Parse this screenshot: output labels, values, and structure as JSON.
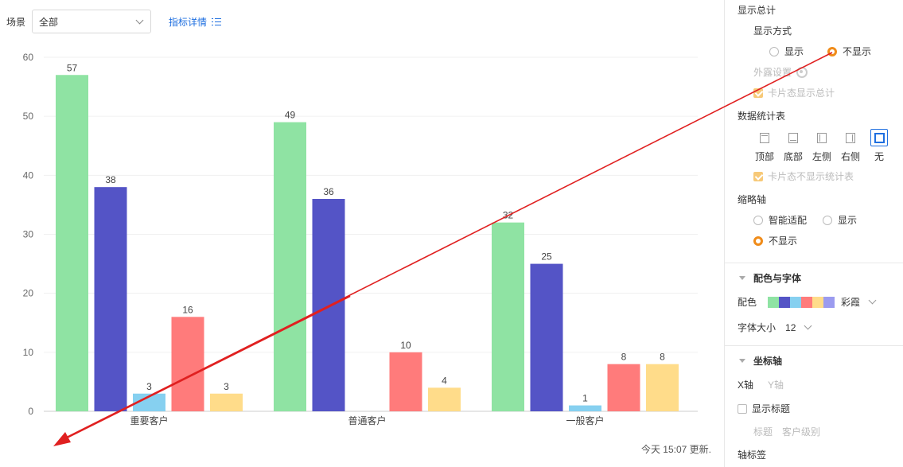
{
  "header": {
    "scene_label": "场景",
    "scene_value": "全部",
    "detail_link": "指标详情"
  },
  "chart_data": {
    "type": "bar",
    "categories": [
      "重要客户",
      "普通客户",
      "一般客户"
    ],
    "series": [
      {
        "values": [
          57,
          49,
          32
        ],
        "color": "#8fe3a3"
      },
      {
        "values": [
          38,
          36,
          25
        ],
        "color": "#5454c6"
      },
      {
        "values": [
          3,
          0,
          1
        ],
        "color": "#86d0f0"
      },
      {
        "values": [
          16,
          10,
          8
        ],
        "color": "#ff7b7b"
      },
      {
        "values": [
          3,
          4,
          8
        ],
        "color": "#ffdc8a"
      }
    ],
    "y_ticks": [
      "0",
      "10",
      "20",
      "30",
      "40",
      "50",
      "60"
    ],
    "ylim": [
      0,
      60
    ],
    "grid": true
  },
  "footer": {
    "update_text": "今天 15:07 更新."
  },
  "panel": {
    "show_total": "显示总计",
    "display_mode": "显示方式",
    "opt_show": "显示",
    "opt_hide": "不显示",
    "outer_setting": "外露设置",
    "card_show_total": "卡片态显示总计",
    "data_table": "数据统计表",
    "pos_top": "顶部",
    "pos_bottom": "底部",
    "pos_left": "左侧",
    "pos_right": "右侧",
    "pos_none": "无",
    "card_hide_table": "卡片态不显示统计表",
    "thumb_axis": "缩略轴",
    "thumb_smart": "智能适配",
    "thumb_show": "显示",
    "thumb_hide": "不显示",
    "color_font_title": "配色与字体",
    "color_label": "配色",
    "palette_name": "彩霞",
    "palette": [
      "#8fe3a3",
      "#5454c6",
      "#86d0f0",
      "#ff7b7b",
      "#ffdc8a",
      "#9b9bef"
    ],
    "font_size_label": "字体大小",
    "font_size_value": "12",
    "axis_title": "坐标轴",
    "x_axis": "X轴",
    "y_axis": "Y轴",
    "show_title": "显示标题",
    "title_label": "标题",
    "title_value": "客户级别",
    "axis_tag": "轴标签"
  },
  "annotation_color": "#e02020"
}
